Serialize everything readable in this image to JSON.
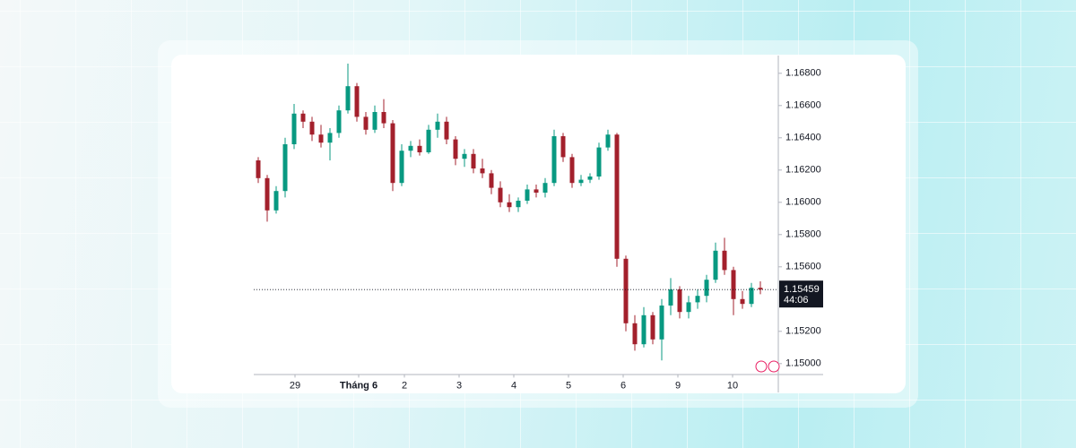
{
  "chart_data": {
    "type": "candlestick",
    "x": [
      0.5,
      1.5,
      2.5,
      3.5,
      4.5,
      5.5,
      6.5,
      7.5,
      8.5,
      9.5,
      10.5,
      11.5,
      12.5,
      13.5,
      14.5,
      15.5,
      16.5,
      17.5,
      18.5,
      19.5,
      20.5,
      21.5,
      22.5,
      23.5,
      24.5,
      25.5,
      26.5,
      27.5,
      28.5,
      29.5,
      30.5,
      31.5,
      32.5,
      33.5,
      34.5,
      35.5,
      36.5,
      37.5,
      38.5,
      39.5,
      40.5,
      41.5,
      42.5,
      43.5,
      44.5,
      45.5,
      46.5,
      47.5,
      48.5,
      49.5,
      50.5,
      51.5,
      52.5,
      53.5,
      54.5,
      55.5,
      56.5
    ],
    "open": [
      1.1626,
      1.1615,
      1.1595,
      1.1607,
      1.1636,
      1.1655,
      1.165,
      1.1642,
      1.1637,
      1.1643,
      1.1657,
      1.1672,
      1.1653,
      1.1645,
      1.1656,
      1.1649,
      1.1612,
      1.1632,
      1.1635,
      1.1631,
      1.1645,
      1.165,
      1.1639,
      1.1627,
      1.163,
      1.1621,
      1.1618,
      1.1609,
      1.16,
      1.1597,
      1.1601,
      1.1608,
      1.1606,
      1.1612,
      1.1641,
      1.1628,
      1.1612,
      1.1614,
      1.1616,
      1.1634,
      1.1642,
      1.1565,
      1.1525,
      1.1512,
      1.153,
      1.1515,
      1.1536,
      1.1546,
      1.1532,
      1.1538,
      1.1542,
      1.1552,
      1.157,
      1.1558,
      1.154,
      1.1537,
      1.1547
    ],
    "high": [
      1.1628,
      1.1617,
      1.161,
      1.164,
      1.1661,
      1.1657,
      1.1653,
      1.1648,
      1.1646,
      1.166,
      1.1686,
      1.1674,
      1.1656,
      1.166,
      1.1664,
      1.1651,
      1.1636,
      1.1638,
      1.1639,
      1.1648,
      1.1655,
      1.1653,
      1.1641,
      1.1633,
      1.1633,
      1.1627,
      1.162,
      1.1613,
      1.1605,
      1.1603,
      1.1611,
      1.1611,
      1.1615,
      1.1645,
      1.1643,
      1.163,
      1.1617,
      1.1618,
      1.1637,
      1.1645,
      1.1643,
      1.1567,
      1.153,
      1.1535,
      1.1532,
      1.154,
      1.1553,
      1.1548,
      1.1542,
      1.1546,
      1.1555,
      1.1575,
      1.1578,
      1.156,
      1.1545,
      1.155,
      1.1551
    ],
    "low": [
      1.1612,
      1.1588,
      1.1593,
      1.1603,
      1.1633,
      1.1646,
      1.1638,
      1.1634,
      1.1626,
      1.164,
      1.1655,
      1.165,
      1.1642,
      1.1643,
      1.1646,
      1.1607,
      1.161,
      1.1628,
      1.1629,
      1.163,
      1.164,
      1.1636,
      1.1623,
      1.1622,
      1.1618,
      1.1615,
      1.1605,
      1.1597,
      1.1594,
      1.1594,
      1.1599,
      1.1603,
      1.1603,
      1.161,
      1.1625,
      1.1609,
      1.161,
      1.1612,
      1.1614,
      1.1632,
      1.156,
      1.152,
      1.1508,
      1.151,
      1.1512,
      1.1502,
      1.153,
      1.1528,
      1.1528,
      1.1534,
      1.1538,
      1.155,
      1.1555,
      1.153,
      1.1534,
      1.1535,
      1.1543
    ],
    "close": [
      1.1615,
      1.1595,
      1.1607,
      1.1636,
      1.1655,
      1.165,
      1.1642,
      1.1637,
      1.1643,
      1.1657,
      1.1672,
      1.1653,
      1.1645,
      1.1656,
      1.1649,
      1.1612,
      1.1632,
      1.1635,
      1.1631,
      1.1645,
      1.165,
      1.1639,
      1.1627,
      1.163,
      1.1621,
      1.1618,
      1.1609,
      1.16,
      1.1597,
      1.1601,
      1.1608,
      1.1606,
      1.1612,
      1.1641,
      1.1628,
      1.1612,
      1.1614,
      1.1616,
      1.1634,
      1.1642,
      1.1565,
      1.1525,
      1.1512,
      1.153,
      1.1515,
      1.1536,
      1.1546,
      1.1532,
      1.1538,
      1.1542,
      1.1552,
      1.157,
      1.1558,
      1.154,
      1.1537,
      1.1547,
      1.15459
    ],
    "up_color": "#089981",
    "down_color": "#a3202c",
    "xlim": [
      0,
      58.5
    ],
    "xticks": [
      {
        "value": 4.6,
        "label": "29"
      },
      {
        "value": 11.7,
        "label": "Tháng 6"
      },
      {
        "value": 16.8,
        "label": "2"
      },
      {
        "value": 22.9,
        "label": "3"
      },
      {
        "value": 29.0,
        "label": "4"
      },
      {
        "value": 35.1,
        "label": "5"
      },
      {
        "value": 41.2,
        "label": "6"
      },
      {
        "value": 47.3,
        "label": "9"
      },
      {
        "value": 53.4,
        "label": "10"
      }
    ],
    "ylim": [
      1.1493,
      1.1691
    ],
    "yticks": [
      {
        "value": 1.15,
        "label": "1.15000"
      },
      {
        "value": 1.152,
        "label": "1.15200"
      },
      {
        "value": 1.156,
        "label": "1.15600"
      },
      {
        "value": 1.158,
        "label": "1.15800"
      },
      {
        "value": 1.16,
        "label": "1.16000"
      },
      {
        "value": 1.162,
        "label": "1.16200"
      },
      {
        "value": 1.164,
        "label": "1.16400"
      },
      {
        "value": 1.166,
        "label": "1.16600"
      },
      {
        "value": 1.168,
        "label": "1.16800"
      }
    ],
    "last_price": {
      "value": 1.15459,
      "label": "1.15459"
    },
    "countdown": "44:06"
  }
}
